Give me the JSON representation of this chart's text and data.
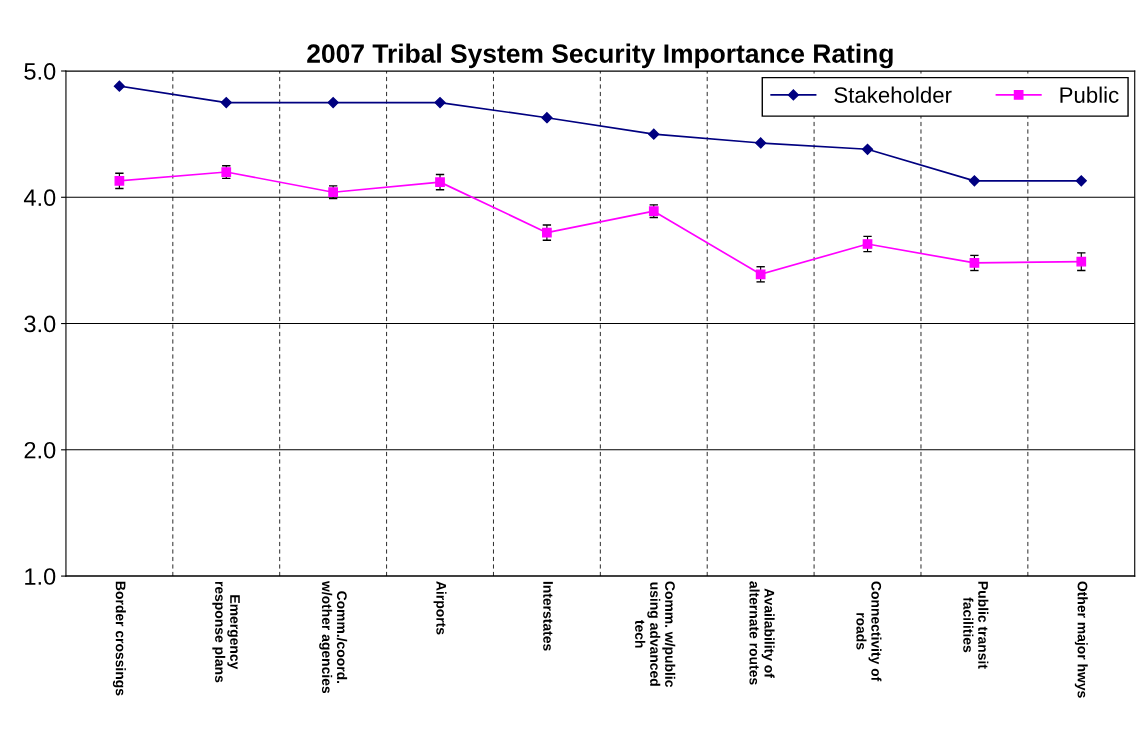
{
  "chart_data": {
    "type": "line",
    "title": "2007 Tribal System Security Importance Rating",
    "categories": [
      "Border crossings",
      "Emergency\nresponse plans",
      "Comm./coord.\nw/other agencies",
      "Airports",
      "Interstates",
      "Comm. w/public\nusing advanced\ntech",
      "Availability of\nalternate routes",
      "Connectivity of\nroads",
      "Public transit\nfacilities",
      "Other major hwys"
    ],
    "series": [
      {
        "name": "Stakeholder",
        "color": "#000080",
        "marker": "diamond",
        "values": [
          4.88,
          4.75,
          4.75,
          4.75,
          4.63,
          4.5,
          4.43,
          4.38,
          4.13,
          4.13
        ]
      },
      {
        "name": "Public",
        "color": "#ff00ff",
        "marker": "square",
        "values": [
          4.13,
          4.2,
          4.04,
          4.12,
          3.72,
          3.89,
          3.39,
          3.63,
          3.48,
          3.49
        ],
        "errors": [
          0.06,
          0.05,
          0.05,
          0.06,
          0.06,
          0.05,
          0.06,
          0.06,
          0.06,
          0.07
        ]
      }
    ],
    "ylim": [
      1,
      5
    ],
    "yticks": [
      {
        "value": 1,
        "label": "1.0"
      },
      {
        "value": 2,
        "label": "2.0"
      },
      {
        "value": 3,
        "label": "3.0"
      },
      {
        "value": 4,
        "label": "4.0"
      },
      {
        "value": 5,
        "label": "5.0"
      }
    ],
    "grid": "y",
    "legend": "top right"
  }
}
